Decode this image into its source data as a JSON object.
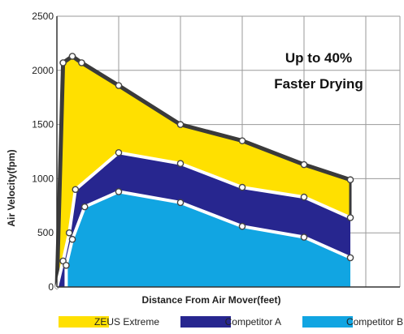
{
  "chart_data": {
    "type": "area",
    "ylabel": "Air Velocity(fpm)",
    "xlabel": "Distance From Air Mover(feet)",
    "ylim": [
      0,
      2500
    ],
    "yticks": [
      "0",
      "500",
      "1000",
      "1500",
      "2000",
      "2500"
    ],
    "xlim": [
      0,
      10
    ],
    "x_grid": [
      2,
      4,
      6,
      8,
      10
    ],
    "grid": true,
    "legend_position": "bottom",
    "annotation": [
      "Up to 40%",
      "Faster Drying"
    ],
    "series": [
      {
        "name": "ZEUS Extreme",
        "color": "#FFE000",
        "points": [
          [
            0,
            0
          ],
          [
            0.2,
            2070
          ],
          [
            0.5,
            2130
          ],
          [
            0.8,
            2070
          ],
          [
            2,
            1860
          ],
          [
            4,
            1500
          ],
          [
            6,
            1350
          ],
          [
            8,
            1130
          ],
          [
            9.5,
            990
          ]
        ]
      },
      {
        "name": "Competitor A",
        "color": "#27268F",
        "points": [
          [
            0,
            0
          ],
          [
            0.2,
            240
          ],
          [
            0.4,
            500
          ],
          [
            0.6,
            900
          ],
          [
            2,
            1240
          ],
          [
            4,
            1140
          ],
          [
            6,
            920
          ],
          [
            8,
            830
          ],
          [
            9.5,
            640
          ]
        ]
      },
      {
        "name": "Competitor B",
        "color": "#11A5E2",
        "points": [
          [
            0.3,
            0
          ],
          [
            0.3,
            200
          ],
          [
            0.5,
            440
          ],
          [
            0.9,
            740
          ],
          [
            2,
            880
          ],
          [
            4,
            780
          ],
          [
            6,
            560
          ],
          [
            8,
            460
          ],
          [
            9.5,
            270
          ]
        ]
      }
    ]
  }
}
